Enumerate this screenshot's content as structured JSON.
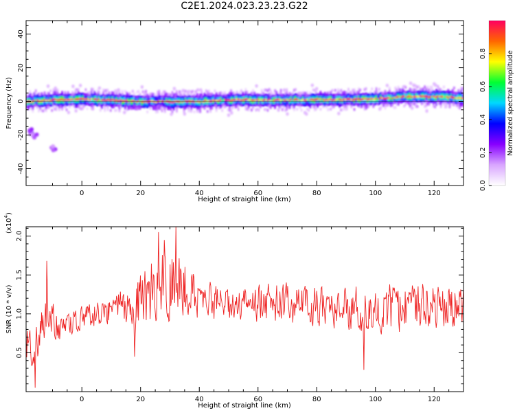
{
  "title": "C2E1.2024.023.23.23.G22",
  "colors": {
    "snr_line": "#ee2222",
    "plot_bg": "#ffffff",
    "axis": "#000000"
  },
  "colormap": [
    "#ffffff",
    "#d9a6ff",
    "#8800ff",
    "#0000ff",
    "#00d8ff",
    "#00ff33",
    "#ffff00",
    "#ff6600",
    "#ff0060"
  ],
  "chart_data": [
    {
      "type": "heatmap",
      "name": "spectrogram",
      "xlabel": "Height of straight line (km)",
      "ylabel": "Frequency (Hz)",
      "xlim": [
        -19,
        130
      ],
      "ylim": [
        -50,
        48
      ],
      "xticks": [
        0,
        20,
        40,
        60,
        80,
        100,
        120
      ],
      "yticks": [
        -40,
        -20,
        0,
        20,
        40
      ],
      "colorbar": {
        "label": "Normalized spectral amplitude",
        "range": [
          0,
          1
        ],
        "ticks": [
          "0.0",
          "0.2",
          "0.4",
          "0.6",
          "0.8"
        ]
      },
      "ridge": [
        {
          "x": -19,
          "freq": 0.0
        },
        {
          "x": -10,
          "freq": 1.0
        },
        {
          "x": 0,
          "freq": 1.5
        },
        {
          "x": 20,
          "freq": 0.0
        },
        {
          "x": 40,
          "freq": 0.0
        },
        {
          "x": 50,
          "freq": 1.0
        },
        {
          "x": 80,
          "freq": 1.0
        },
        {
          "x": 100,
          "freq": 1.5
        },
        {
          "x": 110,
          "freq": 3.0
        },
        {
          "x": 120,
          "freq": 3.0
        },
        {
          "x": 130,
          "freq": 2.0
        }
      ],
      "blobs": [
        {
          "x": -17.5,
          "freq": -18,
          "amplitude": 0.3
        },
        {
          "x": -16,
          "freq": -20,
          "amplitude": 0.25
        },
        {
          "x": -10,
          "freq": -28,
          "amplitude": 0.25
        }
      ]
    },
    {
      "type": "line",
      "name": "snr",
      "xlabel": "Height of straight line (km)",
      "ylabel": "SNR (10 * v/v)",
      "scale_label": "(x10",
      "scale_exp": "4",
      "scale_close": ")",
      "xlim": [
        -19,
        130
      ],
      "ylim": [
        0.0,
        2.12
      ],
      "xticks": [
        0,
        20,
        40,
        60,
        80,
        100,
        120
      ],
      "yticks": [
        0.5,
        1.0,
        1.5,
        2.0
      ],
      "ytick_labels": [
        "0.5",
        "1.0",
        "1.5",
        "2.0"
      ],
      "envelope": [
        {
          "x": -19,
          "mean": 0.55,
          "spread": 0.38
        },
        {
          "x": -15,
          "mean": 0.7,
          "spread": 0.3
        },
        {
          "x": -12,
          "mean": 1.05,
          "spread": 0.4
        },
        {
          "x": -8,
          "mean": 0.8,
          "spread": 0.2
        },
        {
          "x": 0,
          "mean": 0.95,
          "spread": 0.18
        },
        {
          "x": 10,
          "mean": 1.05,
          "spread": 0.2
        },
        {
          "x": 18,
          "mean": 1.15,
          "spread": 0.4
        },
        {
          "x": 25,
          "mean": 1.3,
          "spread": 0.55
        },
        {
          "x": 32,
          "mean": 1.45,
          "spread": 0.55
        },
        {
          "x": 40,
          "mean": 1.2,
          "spread": 0.3
        },
        {
          "x": 50,
          "mean": 1.1,
          "spread": 0.25
        },
        {
          "x": 60,
          "mean": 1.15,
          "spread": 0.3
        },
        {
          "x": 80,
          "mean": 1.1,
          "spread": 0.3
        },
        {
          "x": 100,
          "mean": 1.05,
          "spread": 0.38
        },
        {
          "x": 115,
          "mean": 1.1,
          "spread": 0.35
        },
        {
          "x": 130,
          "mean": 1.1,
          "spread": 0.3
        }
      ]
    }
  ]
}
